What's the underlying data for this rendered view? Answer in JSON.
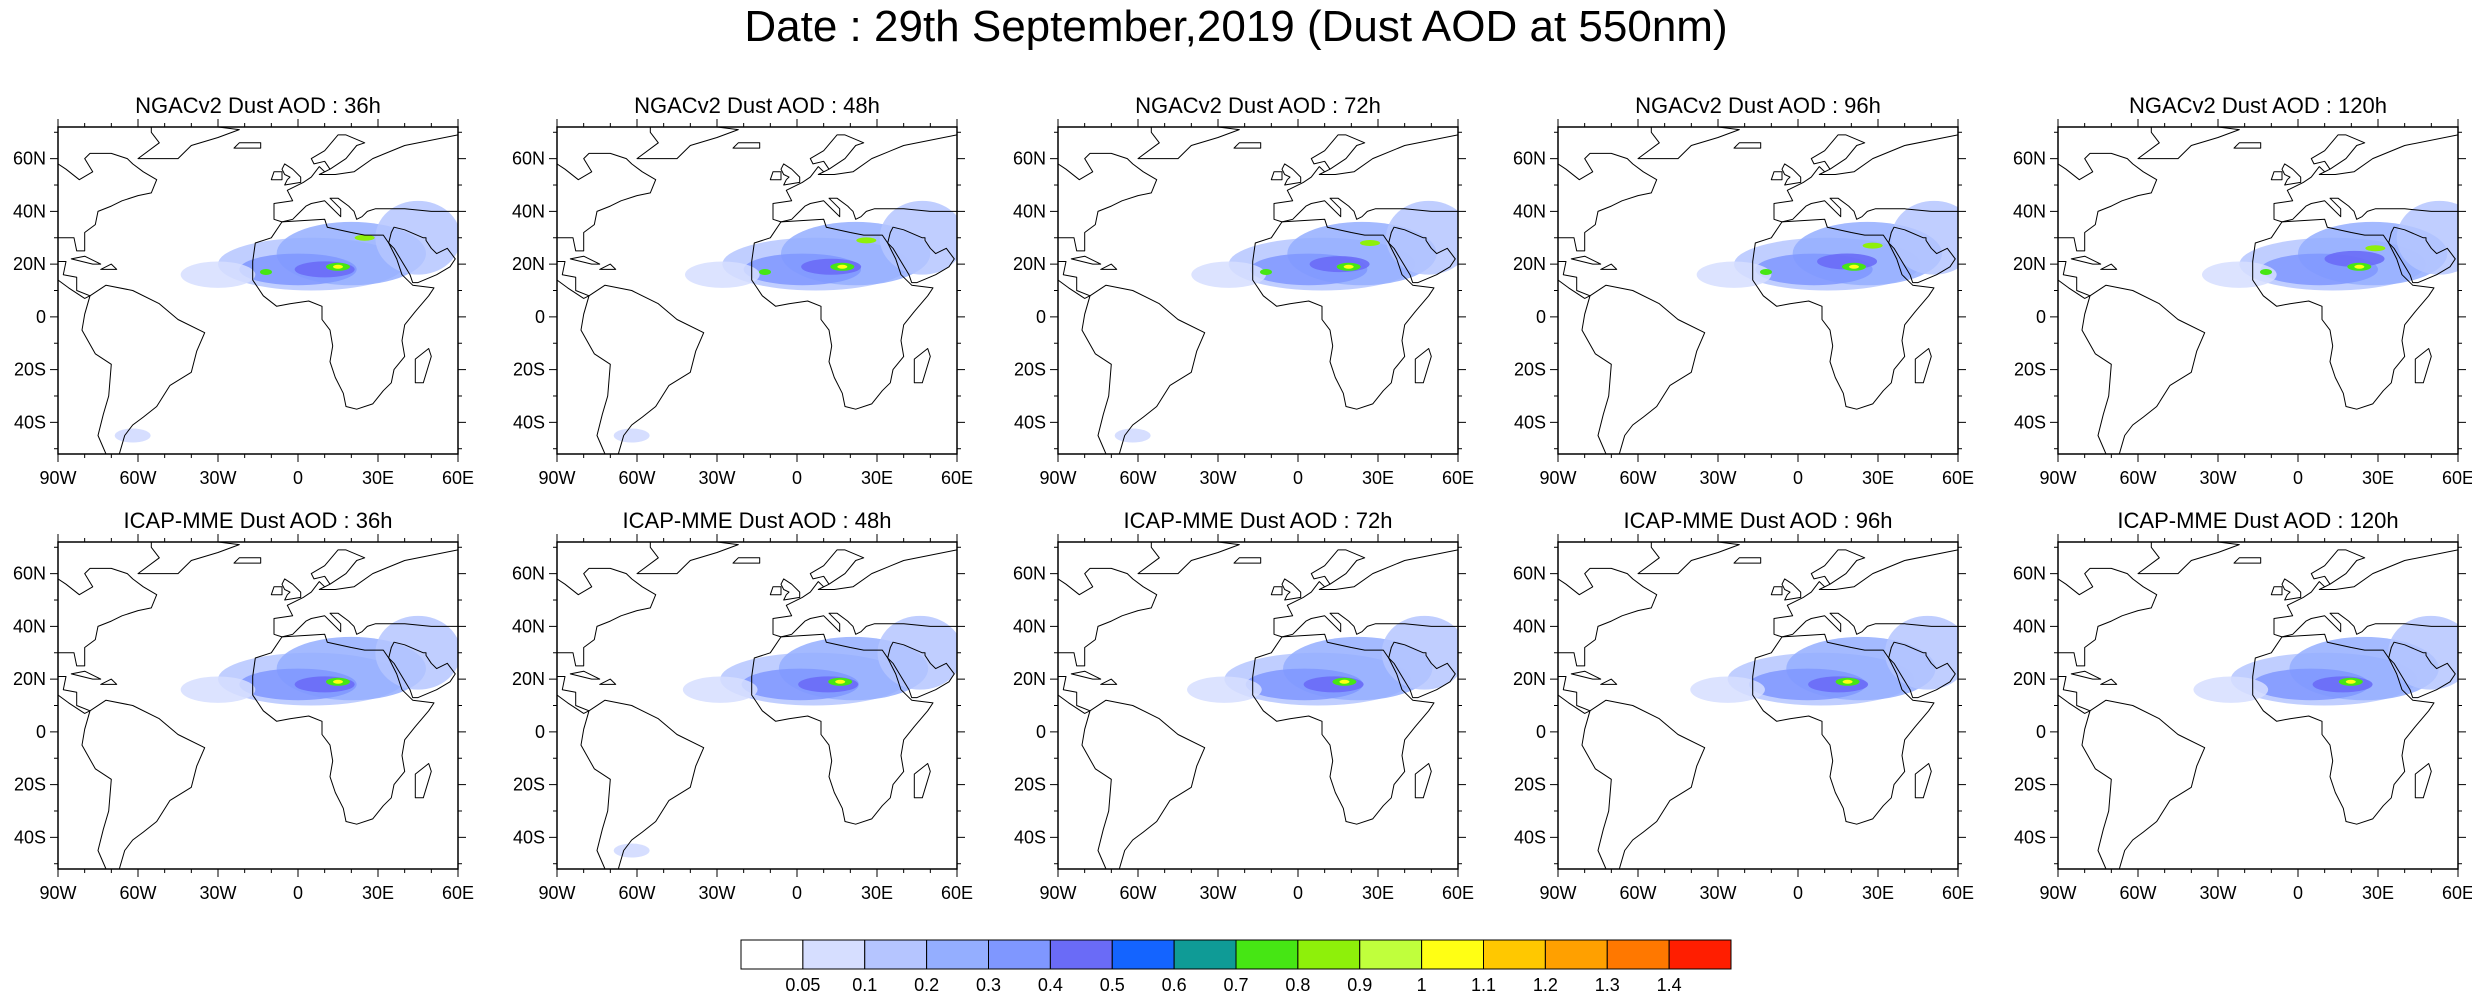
{
  "title": "Date : 29th September,2019 (Dust AOD at 550nm)",
  "panels_top": [
    {
      "title": "NGACv2 Dust AOD : 36h"
    },
    {
      "title": "NGACv2 Dust AOD : 48h"
    },
    {
      "title": "NGACv2 Dust AOD : 72h"
    },
    {
      "title": "NGACv2 Dust AOD : 96h"
    },
    {
      "title": "NGACv2 Dust AOD : 120h"
    }
  ],
  "panels_bottom": [
    {
      "title": "ICAP-MME Dust AOD : 36h"
    },
    {
      "title": "ICAP-MME Dust AOD : 48h"
    },
    {
      "title": "ICAP-MME Dust AOD : 72h"
    },
    {
      "title": "ICAP-MME Dust AOD : 96h"
    },
    {
      "title": "ICAP-MME Dust AOD : 120h"
    }
  ],
  "lon_ticks": [
    "90W",
    "60W",
    "30W",
    "0",
    "30E",
    "60E"
  ],
  "lat_ticks": [
    "60N",
    "40N",
    "20N",
    "0",
    "20S",
    "40S"
  ],
  "colorbar": {
    "labels": [
      "0.05",
      "0.1",
      "0.2",
      "0.3",
      "0.4",
      "0.5",
      "0.6",
      "0.7",
      "0.8",
      "0.9",
      "1",
      "1.1",
      "1.2",
      "1.3",
      "1.4"
    ],
    "colors": [
      "#ffffff",
      "#d6deff",
      "#b5c5ff",
      "#94aeff",
      "#7f97ff",
      "#6a6bf7",
      "#1464ff",
      "#0f9b96",
      "#46e614",
      "#8ef00a",
      "#c0ff3c",
      "#ffff14",
      "#ffc800",
      "#ffa000",
      "#ff7800",
      "#ff1e00"
    ]
  }
}
